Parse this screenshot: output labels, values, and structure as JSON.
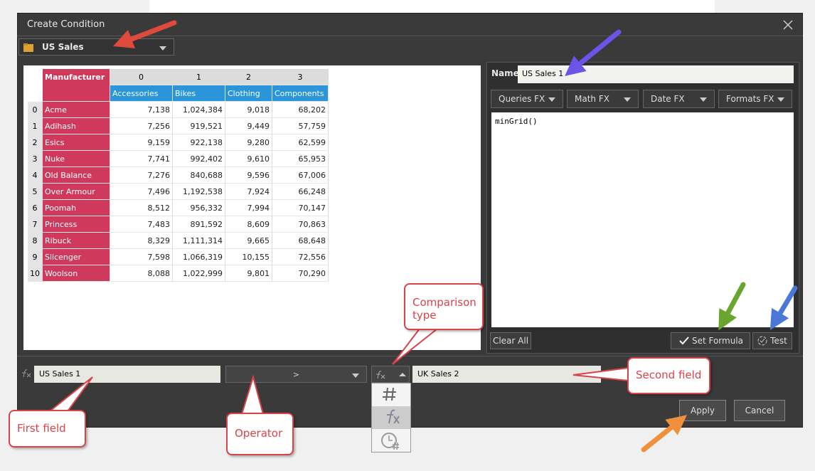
{
  "dialog": {
    "title": "Create Condition",
    "source": "US Sales"
  },
  "grid": {
    "corner_header": "Manufacturer",
    "column_indexes": [
      "0",
      "1",
      "2",
      "3"
    ],
    "column_names": [
      "Accessories",
      "Bikes",
      "Clothing",
      "Components"
    ],
    "rows": [
      [
        "0",
        "Acme",
        "7,138",
        "1,024,384",
        "9,018",
        "68,202"
      ],
      [
        "1",
        "Adihash",
        "7,256",
        "919,521",
        "9,449",
        "57,759"
      ],
      [
        "2",
        "Esics",
        "9,159",
        "922,138",
        "9,280",
        "62,599"
      ],
      [
        "3",
        "Nuke",
        "7,741",
        "992,402",
        "9,610",
        "65,953"
      ],
      [
        "4",
        "Old Balance",
        "7,276",
        "840,688",
        "9,596",
        "67,006"
      ],
      [
        "5",
        "Over Armour",
        "7,496",
        "1,192,538",
        "7,924",
        "66,248"
      ],
      [
        "6",
        "Poomah",
        "8,512",
        "956,332",
        "7,994",
        "70,147"
      ],
      [
        "7",
        "Princess",
        "7,483",
        "891,592",
        "8,609",
        "70,863"
      ],
      [
        "8",
        "Ribuck",
        "8,329",
        "1,111,314",
        "9,665",
        "68,648"
      ],
      [
        "9",
        "Slicenger",
        "7,598",
        "1,066,319",
        "10,155",
        "72,556"
      ],
      [
        "10",
        "Woolson",
        "8,088",
        "1,022,999",
        "9,801",
        "70,290"
      ]
    ]
  },
  "formula_panel": {
    "name_label": "Name",
    "name_value": "US Sales 1",
    "menus": [
      "Queries FX",
      "Math FX",
      "Date FX",
      "Formats FX"
    ],
    "code": "minGrid()",
    "clear_button": "Clear All",
    "set_button": "Set Formula",
    "test_button": "Test"
  },
  "condition": {
    "first_field": "US Sales 1",
    "operator": ">",
    "second_field": "UK Sales 2"
  },
  "footer": {
    "apply": "Apply",
    "cancel": "Cancel"
  },
  "annotations": {
    "comparison_type": "Comparison type",
    "second_field": "Second field",
    "first_field": "First field",
    "operator": "Operator"
  }
}
